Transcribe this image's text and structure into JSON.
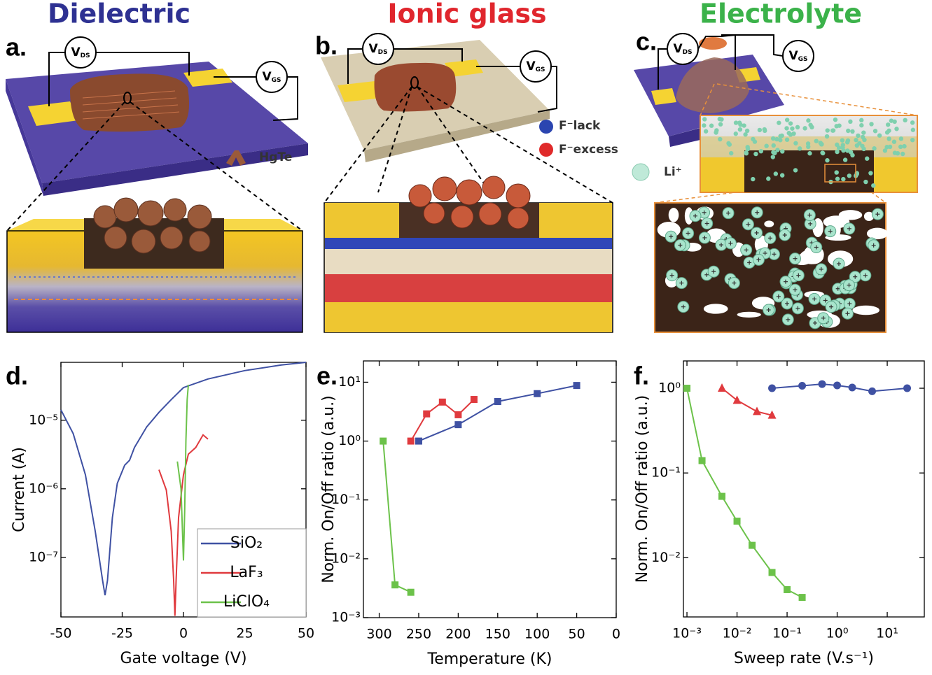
{
  "illustrations": [
    {
      "title": "Dielectric",
      "label": "a.",
      "vds": {
        "main": "V",
        "sub": "DS"
      },
      "vgs": {
        "main": "V",
        "sub": "GS"
      },
      "legend": [
        {
          "text": "HgTe"
        }
      ]
    },
    {
      "title": "Ionic glass",
      "label": "b.",
      "vds": {
        "main": "V",
        "sub": "DS"
      },
      "vgs": {
        "main": "V",
        "sub": "GS"
      },
      "legend": [
        {
          "text": "F⁻lack"
        },
        {
          "text": "F⁻excess"
        }
      ]
    },
    {
      "title": "Electrolyte",
      "label": "c.",
      "vds": {
        "main": "V",
        "sub": "DS"
      },
      "vgs": {
        "main": "V",
        "sub": "GS"
      },
      "legend": [
        {
          "text": "Li⁺"
        }
      ]
    }
  ],
  "chart_data": [
    {
      "type": "line",
      "label": "d.",
      "xlabel": "Gate voltage (V)",
      "ylabel": "Current (A)",
      "yscale": "log",
      "xscale": "linear",
      "xlim": [
        -50,
        50
      ],
      "xticks": [
        -50,
        -25,
        0,
        25,
        50
      ],
      "ylim": [
        1.35e-08,
        7e-05
      ],
      "yticks": [
        {
          "value": 1e-05,
          "label": "10⁻⁵"
        },
        {
          "value": 1e-06,
          "label": "10⁻⁶"
        },
        {
          "value": 1e-07,
          "label": "10⁻⁷"
        }
      ],
      "legend": "lower right",
      "grid": false,
      "series": [
        {
          "name": "SiO₂",
          "color": "#3f51a3",
          "x": [
            -50,
            -45,
            -40,
            -36,
            -33,
            -32,
            -31,
            -29,
            -27,
            -24,
            -22,
            -20,
            -15,
            -10,
            -5,
            0,
            10,
            25,
            40,
            50
          ],
          "values": [
            1.42e-05,
            6.4e-06,
            1.6e-06,
            2.4e-07,
            4.6e-08,
            2.8e-08,
            4.6e-08,
            3.8e-07,
            1.2e-06,
            2.2e-06,
            2.6e-06,
            4e-06,
            8e-06,
            1.3e-05,
            2e-05,
            3e-05,
            4e-05,
            5.3e-05,
            6.4e-05,
            7e-05
          ]
        },
        {
          "name": "LaF₃",
          "color": "#e03a3e",
          "x": [
            -10,
            -7,
            -5,
            -4,
            -3.5,
            -3,
            -2,
            0,
            2,
            5,
            8,
            10
          ],
          "values": [
            1.9e-06,
            9.6e-07,
            2.4e-07,
            4.6e-08,
            1.4e-08,
            4.6e-08,
            3.8e-07,
            1.6e-06,
            3.2e-06,
            4e-06,
            6.1e-06,
            5.3e-06
          ]
        },
        {
          "name": "LiClO₄",
          "color": "#6cc24a",
          "x": [
            -2.5,
            -1,
            0,
            0.5,
            1,
            1.5,
            2
          ],
          "values": [
            2.5e-06,
            1e-06,
            9e-08,
            5e-07,
            5e-06,
            2e-05,
            3.3e-05
          ]
        }
      ]
    },
    {
      "type": "line",
      "label": "e.",
      "xlabel": "Temperature (K)",
      "ylabel": "Norm. On/Off ratio (a.u.)",
      "yscale": "log",
      "xscale": "linear",
      "xlim": [
        320,
        0
      ],
      "xticks": [
        300,
        250,
        200,
        150,
        100,
        50,
        0
      ],
      "ylim": [
        0.001,
        23
      ],
      "yticks": [
        {
          "value": 10,
          "label": "10¹"
        },
        {
          "value": 1,
          "label": "10⁰"
        },
        {
          "value": 0.1,
          "label": "10⁻¹"
        },
        {
          "value": 0.01,
          "label": "10⁻²"
        },
        {
          "value": 0.001,
          "label": "10⁻³"
        }
      ],
      "grid": false,
      "series": [
        {
          "color": "#3f51a3",
          "marker": "square",
          "x": [
            250,
            200,
            150,
            100,
            50
          ],
          "values": [
            1,
            1.9,
            4.7,
            6.4,
            8.8
          ]
        },
        {
          "color": "#e03a3e",
          "marker": "square",
          "x": [
            260,
            240,
            220,
            200,
            180
          ],
          "values": [
            1,
            2.9,
            4.6,
            2.8,
            5.1
          ]
        },
        {
          "color": "#6cc24a",
          "marker": "square",
          "x": [
            295,
            280,
            260
          ],
          "values": [
            1,
            0.0036,
            0.0027
          ]
        }
      ]
    },
    {
      "type": "line",
      "label": "f.",
      "xlabel": "Sweep rate (V.s⁻¹)",
      "ylabel": "Norm. On/Off ratio (a.u.)",
      "yscale": "log",
      "xscale": "log",
      "xlim": [
        0.00085,
        55
      ],
      "xticks": [
        {
          "value": 0.001,
          "label": "10⁻³"
        },
        {
          "value": 0.01,
          "label": "10⁻²"
        },
        {
          "value": 0.1,
          "label": "10⁻¹"
        },
        {
          "value": 1,
          "label": "10⁰"
        },
        {
          "value": 10,
          "label": "10¹"
        }
      ],
      "ylim": [
        0.002,
        2.1
      ],
      "yticks": [
        {
          "value": 1,
          "label": "10⁰"
        },
        {
          "value": 0.1,
          "label": "10⁻¹"
        },
        {
          "value": 0.01,
          "label": "10⁻²"
        }
      ],
      "grid": false,
      "series": [
        {
          "color": "#3f51a3",
          "marker": "circle",
          "x": [
            0.05,
            0.2,
            0.5,
            1,
            2,
            5,
            25
          ],
          "values": [
            1,
            1.07,
            1.12,
            1.08,
            1.02,
            0.92,
            1
          ]
        },
        {
          "color": "#e03a3e",
          "marker": "triangle",
          "x": [
            0.005,
            0.01,
            0.025,
            0.05
          ],
          "values": [
            1,
            0.72,
            0.53,
            0.48
          ]
        },
        {
          "color": "#6cc24a",
          "marker": "square",
          "x": [
            0.001,
            0.002,
            0.005,
            0.01,
            0.02,
            0.05,
            0.1,
            0.2
          ],
          "values": [
            1,
            0.14,
            0.053,
            0.027,
            0.014,
            0.0067,
            0.0042,
            0.0034
          ]
        }
      ]
    }
  ]
}
